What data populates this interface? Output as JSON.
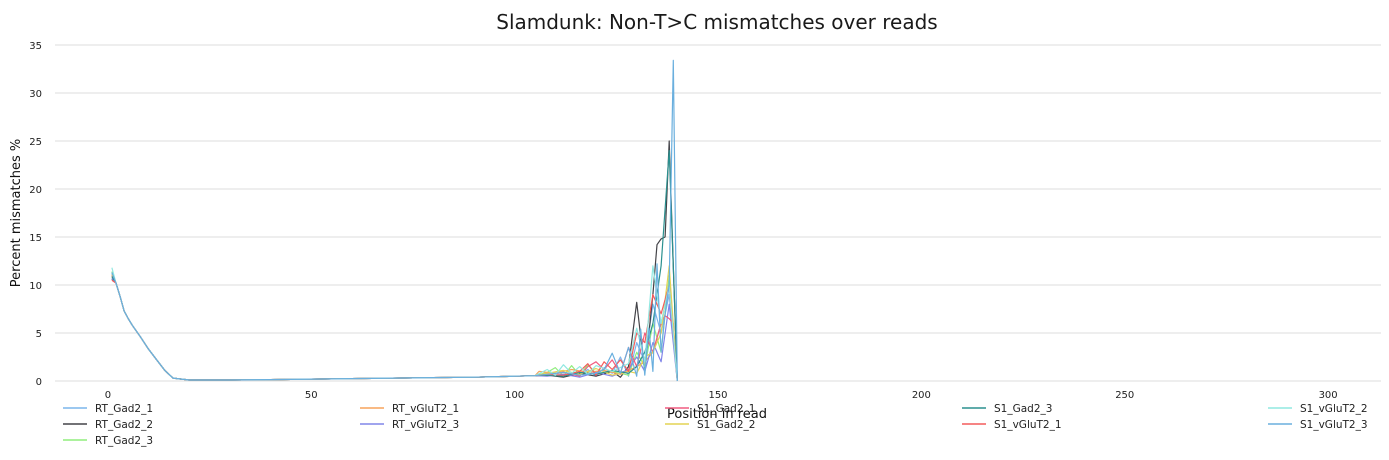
{
  "chart_data": {
    "type": "line",
    "title": "Slamdunk: Non-T>C mismatches over reads",
    "xlabel": "Position in read",
    "ylabel": "Percent mismatches %",
    "xlim": [
      -13,
      313
    ],
    "ylim": [
      0,
      35
    ],
    "x_ticks": [
      0,
      50,
      100,
      150,
      200,
      250,
      300
    ],
    "y_ticks": [
      0,
      5,
      10,
      15,
      20,
      25,
      30,
      35
    ],
    "grid": "horizontal",
    "legend_position": "bottom",
    "common_head_x": [
      1,
      2,
      3,
      4,
      5,
      6,
      8,
      10,
      12,
      14,
      16,
      20,
      30,
      40,
      50,
      60,
      70,
      80,
      90,
      100,
      105
    ],
    "common_head_y": [
      10.9,
      10.2,
      8.8,
      7.3,
      6.5,
      5.8,
      4.6,
      3.3,
      2.2,
      1.1,
      0.3,
      0.1,
      0.1,
      0.15,
      0.2,
      0.25,
      0.3,
      0.35,
      0.4,
      0.5,
      0.55
    ],
    "series": [
      {
        "name": "RT_Gad2_1",
        "color": "#7cb5ec",
        "start": 11.2,
        "tail_x": [
          108,
          112,
          116,
          118,
          120,
          122,
          124,
          126,
          128,
          130,
          132,
          134,
          136,
          138,
          140
        ],
        "tail_y": [
          0.7,
          0.9,
          0.6,
          1.2,
          0.5,
          1.4,
          0.8,
          2.5,
          0.5,
          4.0,
          2.0,
          8.0,
          5.0,
          9.0,
          0
        ]
      },
      {
        "name": "RT_Gad2_2",
        "color": "#434348",
        "start": 10.6,
        "tail_x": [
          108,
          112,
          116,
          120,
          124,
          126,
          128,
          130,
          132,
          133,
          134,
          135,
          136,
          137,
          138,
          139,
          140
        ],
        "tail_y": [
          0.6,
          0.4,
          0.8,
          0.5,
          1.0,
          0.4,
          1.5,
          8.2,
          1.0,
          5.0,
          9.0,
          14.2,
          14.8,
          15.0,
          25.0,
          12.0,
          0
        ]
      },
      {
        "name": "RT_Gad2_3",
        "color": "#90ed7d",
        "start": 11.4,
        "tail_x": [
          108,
          110,
          112,
          114,
          116,
          118,
          120,
          124,
          128,
          130,
          132,
          134,
          136,
          138,
          140
        ],
        "tail_y": [
          0.9,
          1.4,
          0.5,
          1.6,
          0.6,
          1.7,
          0.8,
          1.0,
          0.6,
          3.0,
          1.5,
          6.0,
          3.0,
          11.0,
          0
        ]
      },
      {
        "name": "RT_vGluT2_1",
        "color": "#f7a35c",
        "start": 10.8,
        "tail_x": [
          106,
          110,
          114,
          118,
          122,
          126,
          130,
          132,
          134,
          136,
          138,
          140
        ],
        "tail_y": [
          1.0,
          0.8,
          1.2,
          0.9,
          1.1,
          0.7,
          1.5,
          2.0,
          3.0,
          6.0,
          10.0,
          0
        ]
      },
      {
        "name": "RT_vGluT2_3",
        "color": "#8085e9",
        "start": 10.7,
        "tail_x": [
          108,
          112,
          116,
          120,
          124,
          128,
          130,
          132,
          134,
          136,
          138,
          140
        ],
        "tail_y": [
          0.5,
          0.7,
          0.4,
          0.9,
          0.5,
          1.2,
          2.5,
          1.0,
          4.0,
          2.0,
          8.0,
          0
        ]
      },
      {
        "name": "S1_Gad2_1",
        "color": "#f15c80",
        "start": 11.0,
        "tail_x": [
          108,
          112,
          116,
          118,
          120,
          122,
          124,
          126,
          128,
          130,
          132,
          134,
          136,
          137,
          138,
          139,
          140
        ],
        "tail_y": [
          0.6,
          0.9,
          0.5,
          1.5,
          2.0,
          1.2,
          2.2,
          0.8,
          3.5,
          1.5,
          5.0,
          3.0,
          6.0,
          6.8,
          6.5,
          6.0,
          0
        ]
      },
      {
        "name": "S1_Gad2_2",
        "color": "#e4d354",
        "start": 11.1,
        "tail_x": [
          108,
          112,
          116,
          120,
          124,
          128,
          130,
          132,
          134,
          136,
          138,
          140
        ],
        "tail_y": [
          0.8,
          1.1,
          0.7,
          1.3,
          0.6,
          1.0,
          0.8,
          2.5,
          3.0,
          5.0,
          12.0,
          0
        ]
      },
      {
        "name": "S1_Gad2_3",
        "color": "#2b908f",
        "start": 10.9,
        "tail_x": [
          108,
          112,
          116,
          120,
          124,
          128,
          130,
          132,
          134,
          136,
          138,
          140
        ],
        "tail_y": [
          0.6,
          0.5,
          0.9,
          0.7,
          1.1,
          0.8,
          1.5,
          3.0,
          6.0,
          12.0,
          24.0,
          0
        ]
      },
      {
        "name": "S1_vGluT2_1",
        "color": "#f45b5b",
        "start": 10.5,
        "tail_x": [
          108,
          112,
          116,
          118,
          120,
          122,
          124,
          126,
          128,
          130,
          132,
          134,
          136,
          138,
          140
        ],
        "tail_y": [
          0.7,
          0.6,
          1.0,
          1.8,
          0.6,
          2.0,
          1.2,
          2.2,
          1.0,
          5.0,
          4.0,
          9.0,
          7.0,
          10.0,
          0
        ]
      },
      {
        "name": "S1_vGluT2_2",
        "color": "#91e8e1",
        "start": 11.8,
        "tail_x": [
          108,
          110,
          112,
          114,
          116,
          118,
          120,
          124,
          128,
          130,
          132,
          134,
          136,
          138,
          140
        ],
        "tail_y": [
          1.2,
          0.6,
          1.7,
          0.8,
          1.5,
          0.7,
          1.6,
          1.0,
          1.8,
          5.5,
          2.0,
          12.0,
          6.0,
          10.0,
          0
        ]
      },
      {
        "name": "S1_vGluT2_3",
        "color": "#6aafde",
        "start": 11.3,
        "tail_x": [
          108,
          112,
          116,
          120,
          122,
          124,
          126,
          128,
          130,
          131,
          132,
          133,
          134,
          135,
          136,
          137,
          138,
          139,
          140
        ],
        "tail_y": [
          0.7,
          0.9,
          0.6,
          0.8,
          1.2,
          2.9,
          0.8,
          3.5,
          0.5,
          5.4,
          0.6,
          5.5,
          1.0,
          12.2,
          3.0,
          7.0,
          10.0,
          33.4,
          0
        ]
      }
    ]
  }
}
